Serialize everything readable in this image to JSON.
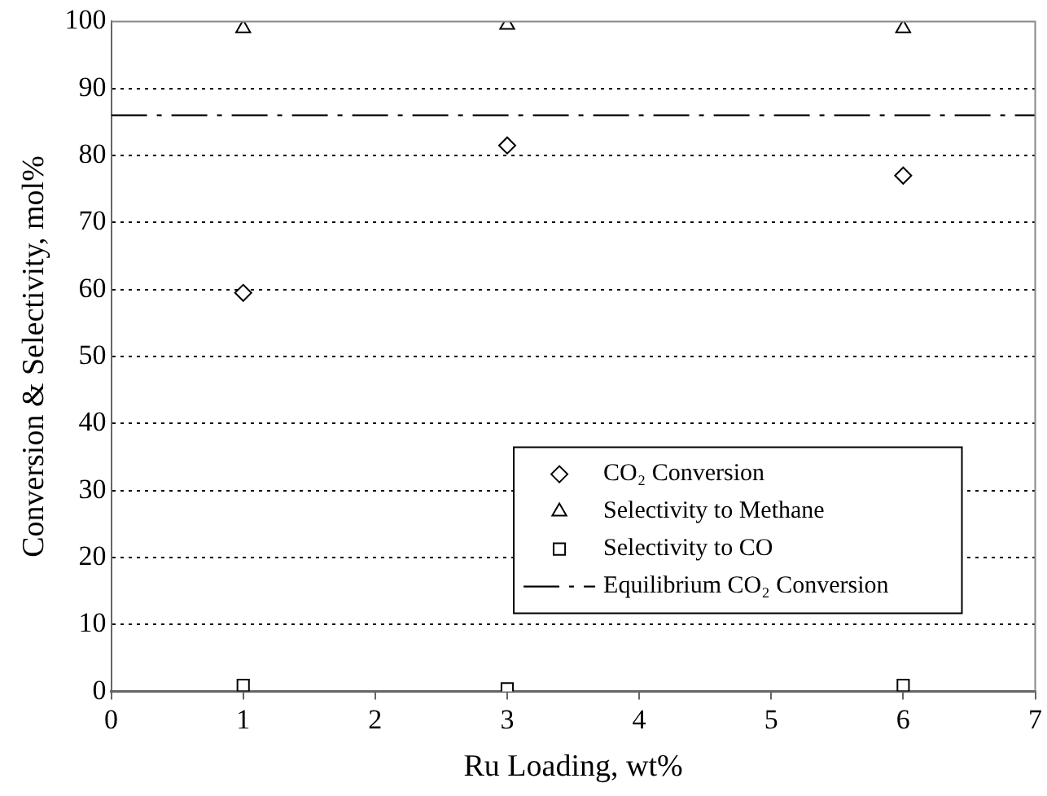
{
  "chart_data": {
    "type": "scatter",
    "xlabel": "Ru Loading, wt%",
    "ylabel": "Conversion & Selectivity, mol%",
    "x": [
      1,
      3,
      6
    ],
    "series": [
      {
        "name": "CO₂ Conversion",
        "color": "#000000",
        "marker": "diamond",
        "values": [
          59.5,
          81.5,
          77
        ]
      },
      {
        "name": "Selectivity to Methane",
        "color": "#000000",
        "marker": "triangle",
        "values": [
          99,
          99.5,
          99
        ]
      },
      {
        "name": "Selectivity to CO",
        "color": "#000000",
        "marker": "square",
        "values": [
          0.9,
          0.4,
          0.9
        ]
      },
      {
        "name": "Equilibrium CO₂ Conversion",
        "type": "line",
        "color": "#000000",
        "marker": "none",
        "line_style": "dashed",
        "x": [
          0,
          7
        ],
        "values": [
          86,
          86
        ]
      }
    ],
    "xlim": [
      0,
      7
    ],
    "xticks": [
      0,
      1,
      2,
      3,
      4,
      5,
      6,
      7
    ],
    "ylim": [
      0,
      100
    ],
    "yticks": [
      0,
      10,
      20,
      30,
      40,
      50,
      60,
      70,
      80,
      90,
      100
    ],
    "grid": "y",
    "legend": "bottom right"
  }
}
